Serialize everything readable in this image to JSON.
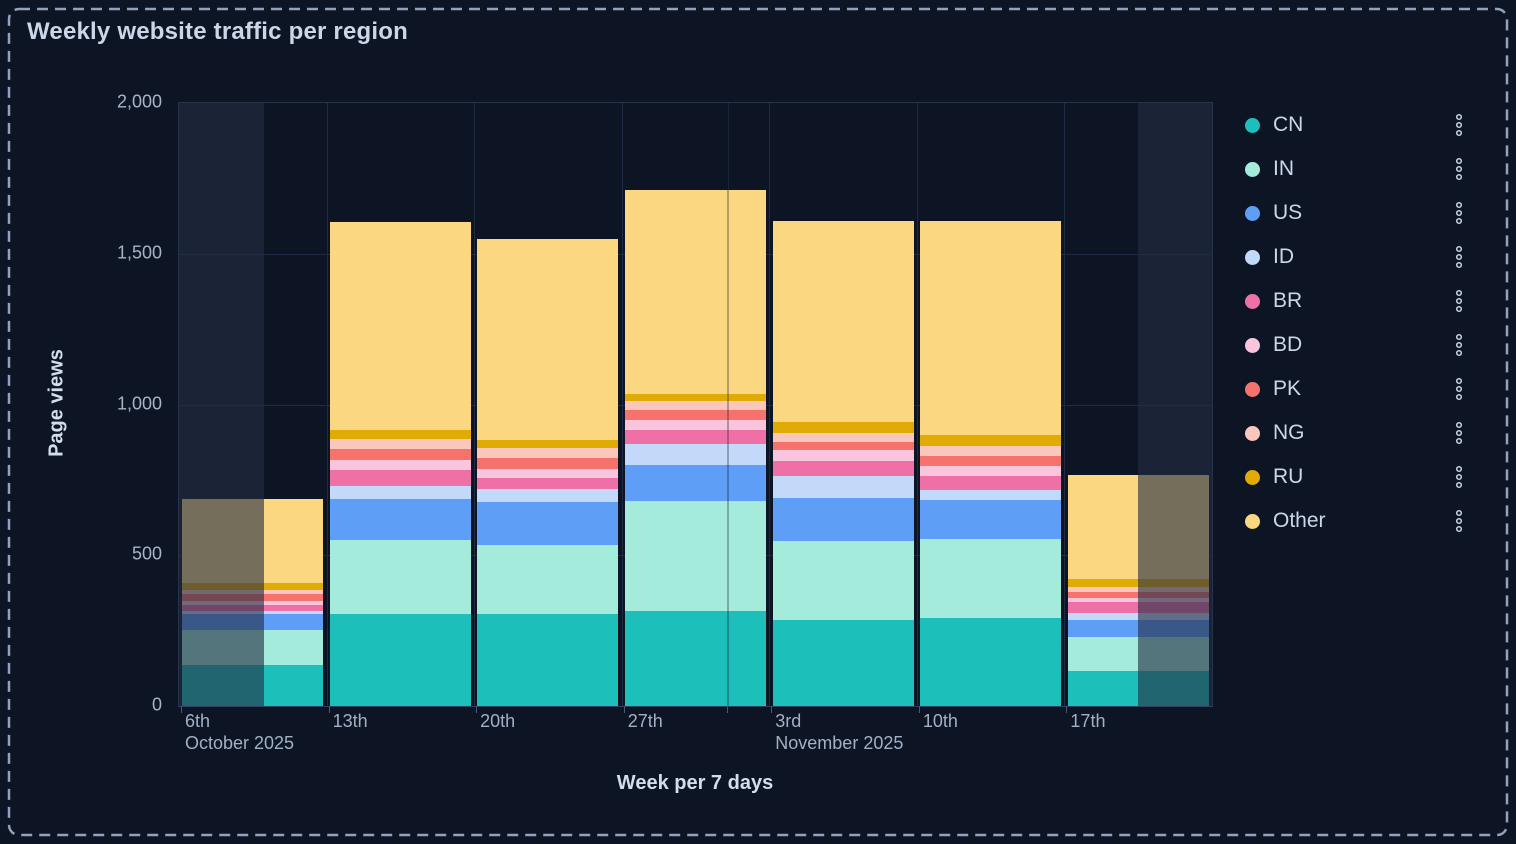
{
  "page": {
    "title": "Weekly website traffic per region",
    "background_color": "#0D1524",
    "dashed_border_color": "#8FA3BE"
  },
  "chart_data": {
    "type": "bar",
    "stacked": true,
    "title": "Weekly website traffic per region",
    "xlabel": "Week per 7 days",
    "ylabel": "Page views",
    "ylim": [
      0,
      2000
    ],
    "yticks": [
      0,
      500,
      1000,
      1500,
      2000
    ],
    "ytick_labels": [
      "0",
      "500",
      "1,000",
      "1,500",
      "2,000"
    ],
    "grid": true,
    "legend_position": "right",
    "x_ticks": [
      {
        "label": "6th",
        "sublabel": "October 2025"
      },
      {
        "label": "13th",
        "sublabel": ""
      },
      {
        "label": "20th",
        "sublabel": ""
      },
      {
        "label": "27th",
        "sublabel": ""
      },
      {
        "label": "3rd",
        "sublabel": "November 2025"
      },
      {
        "label": "10th",
        "sublabel": ""
      },
      {
        "label": "17th",
        "sublabel": ""
      }
    ],
    "categories": [
      "6th Oct",
      "13th Oct",
      "20th Oct",
      "27th Oct",
      "3rd Nov",
      "10th Nov",
      "17th Nov"
    ],
    "series": [
      {
        "name": "CN",
        "color": "#1DBFBA",
        "values": [
          135,
          304,
          306,
          315,
          284,
          293,
          116
        ]
      },
      {
        "name": "IN",
        "color": "#A5EBDB",
        "values": [
          117,
          246,
          227,
          365,
          263,
          262,
          113
        ]
      },
      {
        "name": "US",
        "color": "#5E9EF6",
        "values": [
          52,
          136,
          144,
          119,
          144,
          129,
          56
        ]
      },
      {
        "name": "ID",
        "color": "#C3D9F9",
        "values": [
          11,
          45,
          44,
          69,
          72,
          31,
          24
        ]
      },
      {
        "name": "BR",
        "color": "#EF70A7",
        "values": [
          19,
          53,
          34,
          49,
          50,
          48,
          36
        ]
      },
      {
        "name": "BD",
        "color": "#F9C5DC",
        "values": [
          14,
          33,
          32,
          32,
          35,
          32,
          12
        ]
      },
      {
        "name": "PK",
        "color": "#F5736C",
        "values": [
          22,
          36,
          34,
          32,
          28,
          33,
          22
        ]
      },
      {
        "name": "NG",
        "color": "#FBC7BC",
        "values": [
          15,
          33,
          36,
          31,
          31,
          33,
          17
        ]
      },
      {
        "name": "RU",
        "color": "#E1AB05",
        "values": [
          24,
          30,
          25,
          24,
          36,
          37,
          24
        ]
      },
      {
        "name": "Other",
        "color": "#FAD780",
        "values": [
          276,
          689,
          668,
          674,
          667,
          712,
          345
        ]
      }
    ],
    "totals": [
      685,
      1605,
      1550,
      1710,
      1610,
      1610,
      765
    ],
    "out_of_range_shading": [
      {
        "side": "left",
        "from_frac": 0.0,
        "to_frac": 0.082
      },
      {
        "side": "right",
        "from_frac": 0.928,
        "to_frac": 1.0
      }
    ],
    "month_boundary_frac": 0.531
  }
}
